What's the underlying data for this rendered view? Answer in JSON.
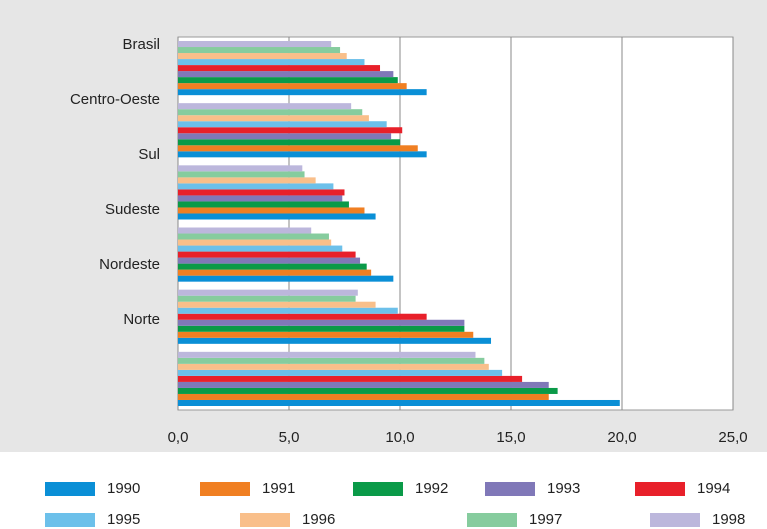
{
  "chart_data": {
    "type": "hbar",
    "categories": [
      "Brasil",
      "Centro-Oeste",
      "Sul",
      "Sudeste",
      "Nordeste",
      "Norte"
    ],
    "series": [
      {
        "name": "1990",
        "color": "#0a8fd6",
        "values": [
          11.2,
          11.2,
          8.9,
          9.7,
          14.1,
          19.9
        ]
      },
      {
        "name": "1991",
        "color": "#f07f22",
        "values": [
          10.3,
          10.8,
          8.4,
          8.7,
          13.3,
          16.7
        ]
      },
      {
        "name": "1992",
        "color": "#0a9a48",
        "values": [
          9.9,
          10.0,
          7.7,
          8.5,
          12.9,
          17.1
        ]
      },
      {
        "name": "1993",
        "color": "#8078b8",
        "values": [
          9.7,
          9.6,
          7.4,
          8.2,
          12.9,
          16.7
        ]
      },
      {
        "name": "1994",
        "color": "#e8202a",
        "values": [
          9.1,
          10.1,
          7.5,
          8.0,
          11.2,
          15.5
        ]
      },
      {
        "name": "1995",
        "color": "#6cc0ea",
        "values": [
          8.4,
          9.4,
          7.0,
          7.4,
          9.9,
          14.6
        ]
      },
      {
        "name": "1996",
        "color": "#f9bf8a",
        "values": [
          7.6,
          8.6,
          6.2,
          6.9,
          8.9,
          14.0
        ]
      },
      {
        "name": "1997",
        "color": "#86cc9e",
        "values": [
          7.3,
          8.3,
          5.7,
          6.8,
          8.0,
          13.8
        ]
      },
      {
        "name": "1998",
        "color": "#bcb7dc",
        "values": [
          6.9,
          7.8,
          5.6,
          6.0,
          8.1,
          13.4
        ]
      }
    ],
    "xlim": [
      0,
      25
    ],
    "xticks": [
      {
        "value": 0,
        "label": "0,0"
      },
      {
        "value": 5,
        "label": "5,0"
      },
      {
        "value": 10,
        "label": "10,0"
      },
      {
        "value": 15,
        "label": "15,0"
      },
      {
        "value": 20,
        "label": "20,0"
      },
      {
        "value": 25,
        "label": "25,0"
      }
    ],
    "grid": true
  }
}
